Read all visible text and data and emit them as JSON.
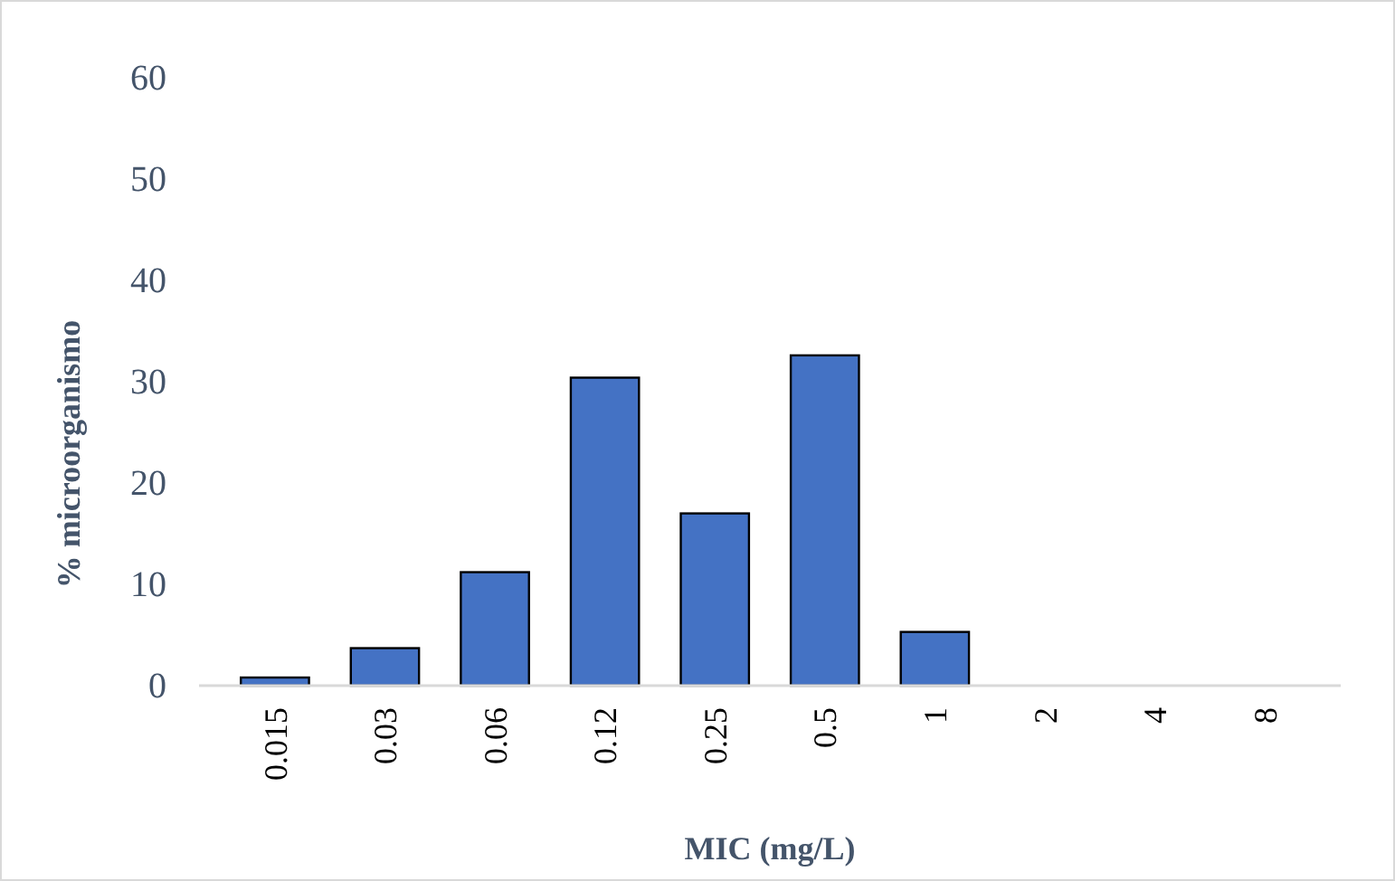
{
  "chart_data": {
    "type": "bar",
    "xlabel": "MIC (mg/L)",
    "ylabel": "% microorganismo",
    "categories": [
      "0.015",
      "0.03",
      "0.06",
      "0.12",
      "0.25",
      "0.5",
      "1",
      "2",
      "4",
      "8"
    ],
    "values": [
      0.8,
      3.7,
      11.2,
      30.4,
      17.0,
      32.6,
      5.3,
      0,
      0,
      0
    ],
    "color": "#4472c4",
    "ylim": [
      0,
      60
    ],
    "yticks": [
      0,
      10,
      20,
      30,
      40,
      50,
      60
    ],
    "grid": false
  }
}
